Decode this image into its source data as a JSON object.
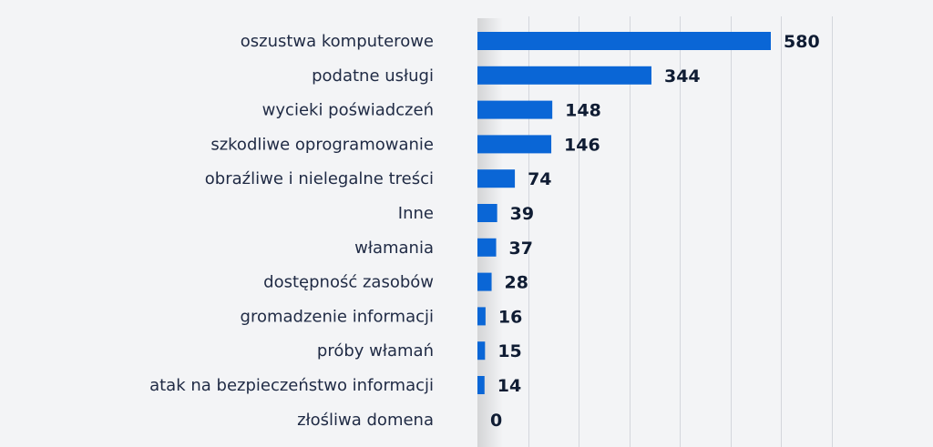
{
  "chart_data": {
    "type": "bar",
    "orientation": "horizontal",
    "categories": [
      "oszustwa komputerowe",
      "podatne usługi",
      "wycieki poświadczeń",
      "szkodliwe oprogramowanie",
      "obraźliwe i nielegalne treści",
      "Inne",
      "włamania",
      "dostępność zasobów",
      "gromadzenie informacji",
      "próby włamań",
      "atak na bezpieczeństwo informacji",
      "złośliwa domena"
    ],
    "values": [
      580,
      344,
      148,
      146,
      74,
      39,
      37,
      28,
      16,
      15,
      14,
      0
    ],
    "data_labels": [
      "580",
      "344",
      "148",
      "146",
      "74",
      "39",
      "37",
      "28",
      "16",
      "15",
      "14",
      "0"
    ],
    "title": "",
    "xlabel": "",
    "ylabel": "",
    "xlim": [
      0,
      700
    ],
    "grid": true,
    "legend": "none",
    "bar_color": "#0a66d6"
  }
}
